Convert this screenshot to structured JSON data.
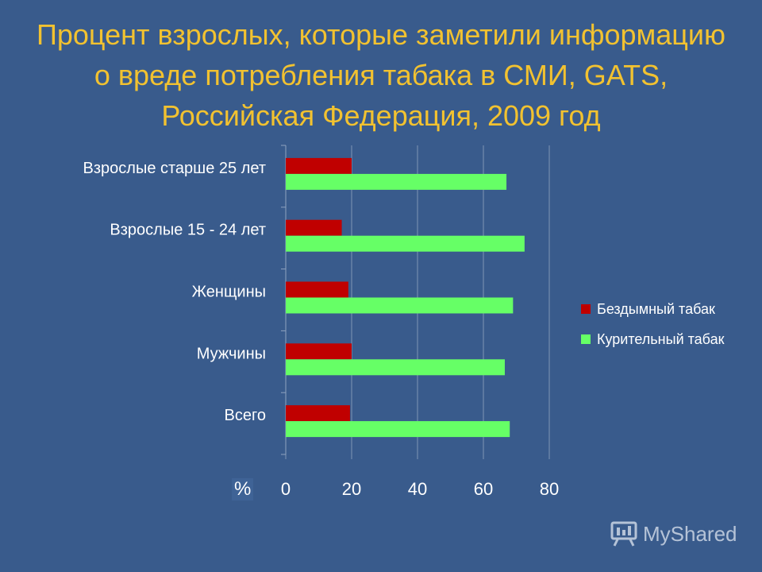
{
  "title": "Процент взрослых, которые заметили информацию о вреде потребления табака в СМИ, GATS, Российская Федерация, 2009 год",
  "watermark": "MyShared",
  "colors": {
    "background": "#395b8c",
    "title": "#f2c230",
    "series_smokeless": "#c00000",
    "series_smoking": "#66ff66"
  },
  "chart_data": {
    "type": "bar",
    "orientation": "horizontal",
    "categories": [
      "Взрослые старше 25 лет",
      "Взрослые 15 - 24 лет",
      "Женщины",
      "Мужчины",
      "Всего"
    ],
    "series": [
      {
        "name": "Бездымный табак",
        "values": [
          20,
          17,
          19,
          20,
          19.5
        ]
      },
      {
        "name": "Курительный табак",
        "values": [
          67,
          72.5,
          69,
          66.5,
          68
        ]
      }
    ],
    "xlabel": "%",
    "xlim": [
      0,
      80
    ],
    "xticks": [
      "0",
      "20",
      "40",
      "60",
      "80"
    ],
    "grid": true,
    "legend_position": "right"
  }
}
